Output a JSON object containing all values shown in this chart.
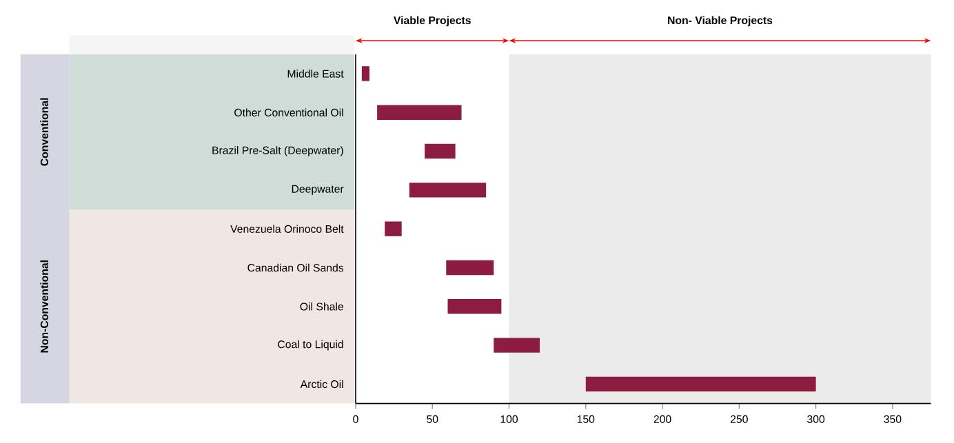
{
  "chart_data": {
    "type": "bar",
    "orientation": "horizontal",
    "categories": [
      "Middle East",
      "Other Conventional Oil",
      "Brazil Pre-Salt (Deepwater)",
      "Deepwater",
      "Venezuela Orinoco Belt",
      "Canadian Oil Sands",
      "Oil Shale",
      "Coal to Liquid",
      "Arctic Oil"
    ],
    "base": [
      4,
      14,
      45,
      35,
      19,
      59,
      60,
      90,
      150
    ],
    "values": [
      5,
      55,
      20,
      50,
      11,
      31,
      35,
      30,
      150
    ],
    "color": "#8c1d40",
    "xlim": [
      0,
      375
    ],
    "xticks": [
      0,
      50,
      100,
      150,
      200,
      250,
      300,
      350
    ],
    "bands": [
      {
        "axis": "x",
        "from": 100,
        "to": 375,
        "label": "Non- Viable Projects",
        "color": "#ebebeb"
      }
    ],
    "annotations": [
      "Conventional",
      "Non-Conventional",
      "Viable Projects"
    ],
    "grid": false
  }
}
